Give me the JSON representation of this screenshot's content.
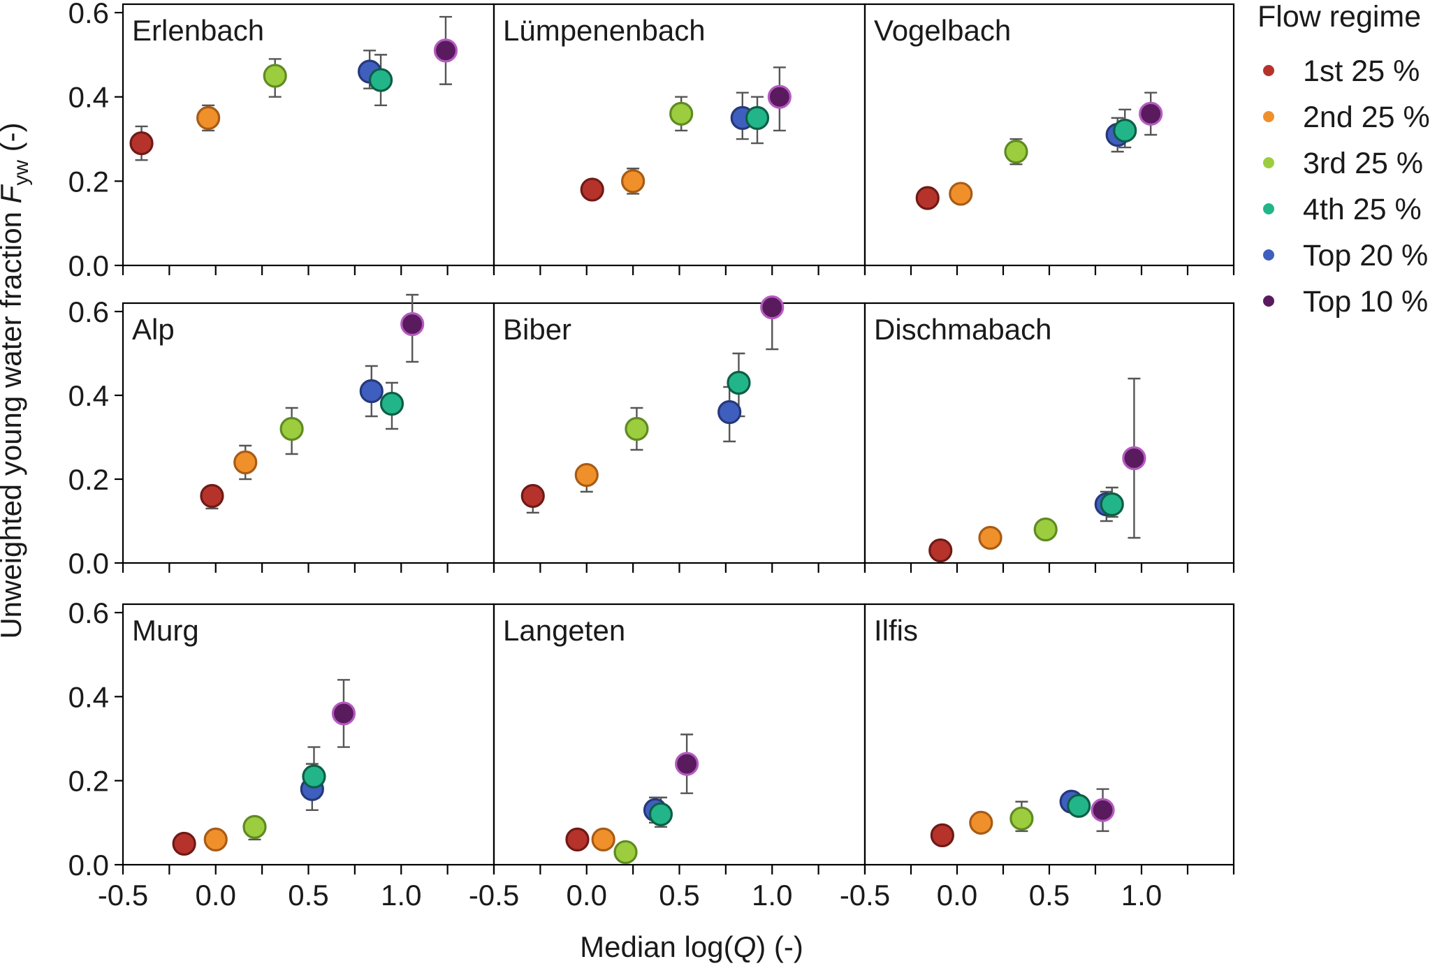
{
  "chart_data": {
    "type": "scatter",
    "layout": "3x3 small multiples with error bars",
    "xlabel_prefix": "Median log(",
    "xlabel_var": "Q",
    "xlabel_suffix": ") (-)",
    "ylabel_prefix": "Unweighted young water fraction ",
    "ylabel_var": "F",
    "ylabel_sub": "yw",
    "ylabel_suffix": " (-)",
    "xlim": [
      -0.5,
      1.5
    ],
    "ylim": [
      0.0,
      0.62
    ],
    "x_ticks": [
      -0.5,
      0.0,
      0.5,
      1.0
    ],
    "x_tick_labels": [
      "-0.5",
      "0.0",
      "0.5",
      "1.0"
    ],
    "x_minor_ticks": [
      -0.25,
      0.25,
      0.75,
      1.25,
      1.5
    ],
    "y_ticks": [
      0.0,
      0.2,
      0.4,
      0.6
    ],
    "y_tick_labels": [
      "0.0",
      "0.2",
      "0.4",
      "0.6"
    ],
    "legend": {
      "title": "Flow regime",
      "position": "right",
      "entries": [
        {
          "label": "1st 25 %",
          "color": "#b5332b",
          "edge": "#6e1a17"
        },
        {
          "label": "2nd 25 %",
          "color": "#f0902b",
          "edge": "#a85b15"
        },
        {
          "label": "3rd 25 %",
          "color": "#9ccd3e",
          "edge": "#5f8a22"
        },
        {
          "label": "4th 25 %",
          "color": "#23b58a",
          "edge": "#0d5e45"
        },
        {
          "label": "Top 20 %",
          "color": "#3f5fbf",
          "edge": "#26387a"
        },
        {
          "label": "Top 10 %",
          "color": "#5a1a5e",
          "edge": "#b55bc0"
        }
      ]
    },
    "panels": [
      {
        "title": "Erlenbach",
        "points": [
          {
            "x": -0.4,
            "y": 0.29,
            "lo": 0.25,
            "hi": 0.33
          },
          {
            "x": -0.04,
            "y": 0.35,
            "lo": 0.32,
            "hi": 0.38
          },
          {
            "x": 0.32,
            "y": 0.45,
            "lo": 0.4,
            "hi": 0.49
          },
          {
            "x": 0.89,
            "y": 0.44,
            "lo": 0.38,
            "hi": 0.5
          },
          {
            "x": 0.83,
            "y": 0.46,
            "lo": 0.42,
            "hi": 0.51
          },
          {
            "x": 1.24,
            "y": 0.51,
            "lo": 0.43,
            "hi": 0.59
          }
        ]
      },
      {
        "title": "Lümpenenbach",
        "points": [
          {
            "x": 0.03,
            "y": 0.18,
            "lo": 0.17,
            "hi": 0.2
          },
          {
            "x": 0.25,
            "y": 0.2,
            "lo": 0.17,
            "hi": 0.23
          },
          {
            "x": 0.51,
            "y": 0.36,
            "lo": 0.32,
            "hi": 0.4
          },
          {
            "x": 0.92,
            "y": 0.35,
            "lo": 0.29,
            "hi": 0.4
          },
          {
            "x": 0.84,
            "y": 0.35,
            "lo": 0.3,
            "hi": 0.41
          },
          {
            "x": 1.04,
            "y": 0.4,
            "lo": 0.32,
            "hi": 0.47
          }
        ]
      },
      {
        "title": "Vogelbach",
        "points": [
          {
            "x": -0.16,
            "y": 0.16,
            "lo": 0.15,
            "hi": 0.17
          },
          {
            "x": 0.02,
            "y": 0.17,
            "lo": 0.16,
            "hi": 0.18
          },
          {
            "x": 0.32,
            "y": 0.27,
            "lo": 0.24,
            "hi": 0.3
          },
          {
            "x": 0.91,
            "y": 0.32,
            "lo": 0.28,
            "hi": 0.37
          },
          {
            "x": 0.87,
            "y": 0.31,
            "lo": 0.27,
            "hi": 0.35
          },
          {
            "x": 1.05,
            "y": 0.36,
            "lo": 0.31,
            "hi": 0.41
          }
        ]
      },
      {
        "title": "Alp",
        "points": [
          {
            "x": -0.02,
            "y": 0.16,
            "lo": 0.13,
            "hi": 0.17
          },
          {
            "x": 0.16,
            "y": 0.24,
            "lo": 0.2,
            "hi": 0.28
          },
          {
            "x": 0.41,
            "y": 0.32,
            "lo": 0.26,
            "hi": 0.37
          },
          {
            "x": 0.95,
            "y": 0.38,
            "lo": 0.32,
            "hi": 0.43
          },
          {
            "x": 0.84,
            "y": 0.41,
            "lo": 0.35,
            "hi": 0.47
          },
          {
            "x": 1.06,
            "y": 0.57,
            "lo": 0.48,
            "hi": 0.64
          }
        ]
      },
      {
        "title": "Biber",
        "points": [
          {
            "x": -0.29,
            "y": 0.16,
            "lo": 0.12,
            "hi": 0.17
          },
          {
            "x": 0.0,
            "y": 0.21,
            "lo": 0.17,
            "hi": 0.23
          },
          {
            "x": 0.27,
            "y": 0.32,
            "lo": 0.27,
            "hi": 0.37
          },
          {
            "x": 0.82,
            "y": 0.43,
            "lo": 0.35,
            "hi": 0.5
          },
          {
            "x": 0.77,
            "y": 0.36,
            "lo": 0.29,
            "hi": 0.42
          },
          {
            "x": 1.0,
            "y": 0.61,
            "lo": 0.51,
            "hi": 0.62
          }
        ]
      },
      {
        "title": "Dischmabach",
        "points": [
          {
            "x": -0.09,
            "y": 0.03,
            "lo": 0.02,
            "hi": 0.04
          },
          {
            "x": 0.18,
            "y": 0.06,
            "lo": 0.05,
            "hi": 0.07
          },
          {
            "x": 0.48,
            "y": 0.08,
            "lo": 0.07,
            "hi": 0.1
          },
          {
            "x": 0.84,
            "y": 0.14,
            "lo": 0.11,
            "hi": 0.18
          },
          {
            "x": 0.81,
            "y": 0.14,
            "lo": 0.1,
            "hi": 0.17
          },
          {
            "x": 0.96,
            "y": 0.25,
            "lo": 0.06,
            "hi": 0.44
          }
        ]
      },
      {
        "title": "Murg",
        "points": [
          {
            "x": -0.17,
            "y": 0.05,
            "lo": 0.04,
            "hi": 0.05
          },
          {
            "x": 0.0,
            "y": 0.06,
            "lo": 0.05,
            "hi": 0.07
          },
          {
            "x": 0.21,
            "y": 0.09,
            "lo": 0.06,
            "hi": 0.11
          },
          {
            "x": 0.53,
            "y": 0.21,
            "lo": 0.16,
            "hi": 0.28
          },
          {
            "x": 0.52,
            "y": 0.18,
            "lo": 0.13,
            "hi": 0.24
          },
          {
            "x": 0.69,
            "y": 0.36,
            "lo": 0.28,
            "hi": 0.44
          }
        ]
      },
      {
        "title": "Langeten",
        "points": [
          {
            "x": -0.05,
            "y": 0.06,
            "lo": 0.05,
            "hi": 0.07
          },
          {
            "x": 0.09,
            "y": 0.06,
            "lo": 0.05,
            "hi": 0.07
          },
          {
            "x": 0.21,
            "y": 0.03,
            "lo": 0.03,
            "hi": 0.04
          },
          {
            "x": 0.4,
            "y": 0.12,
            "lo": 0.09,
            "hi": 0.16
          },
          {
            "x": 0.37,
            "y": 0.13,
            "lo": 0.1,
            "hi": 0.16
          },
          {
            "x": 0.54,
            "y": 0.24,
            "lo": 0.17,
            "hi": 0.31
          }
        ]
      },
      {
        "title": "Ilfis",
        "points": [
          {
            "x": -0.08,
            "y": 0.07,
            "lo": 0.06,
            "hi": 0.08
          },
          {
            "x": 0.13,
            "y": 0.1,
            "lo": 0.09,
            "hi": 0.11
          },
          {
            "x": 0.35,
            "y": 0.11,
            "lo": 0.08,
            "hi": 0.15
          },
          {
            "x": 0.66,
            "y": 0.14,
            "lo": 0.12,
            "hi": 0.16
          },
          {
            "x": 0.62,
            "y": 0.15,
            "lo": 0.13,
            "hi": 0.17
          },
          {
            "x": 0.79,
            "y": 0.13,
            "lo": 0.08,
            "hi": 0.18
          }
        ]
      }
    ]
  }
}
